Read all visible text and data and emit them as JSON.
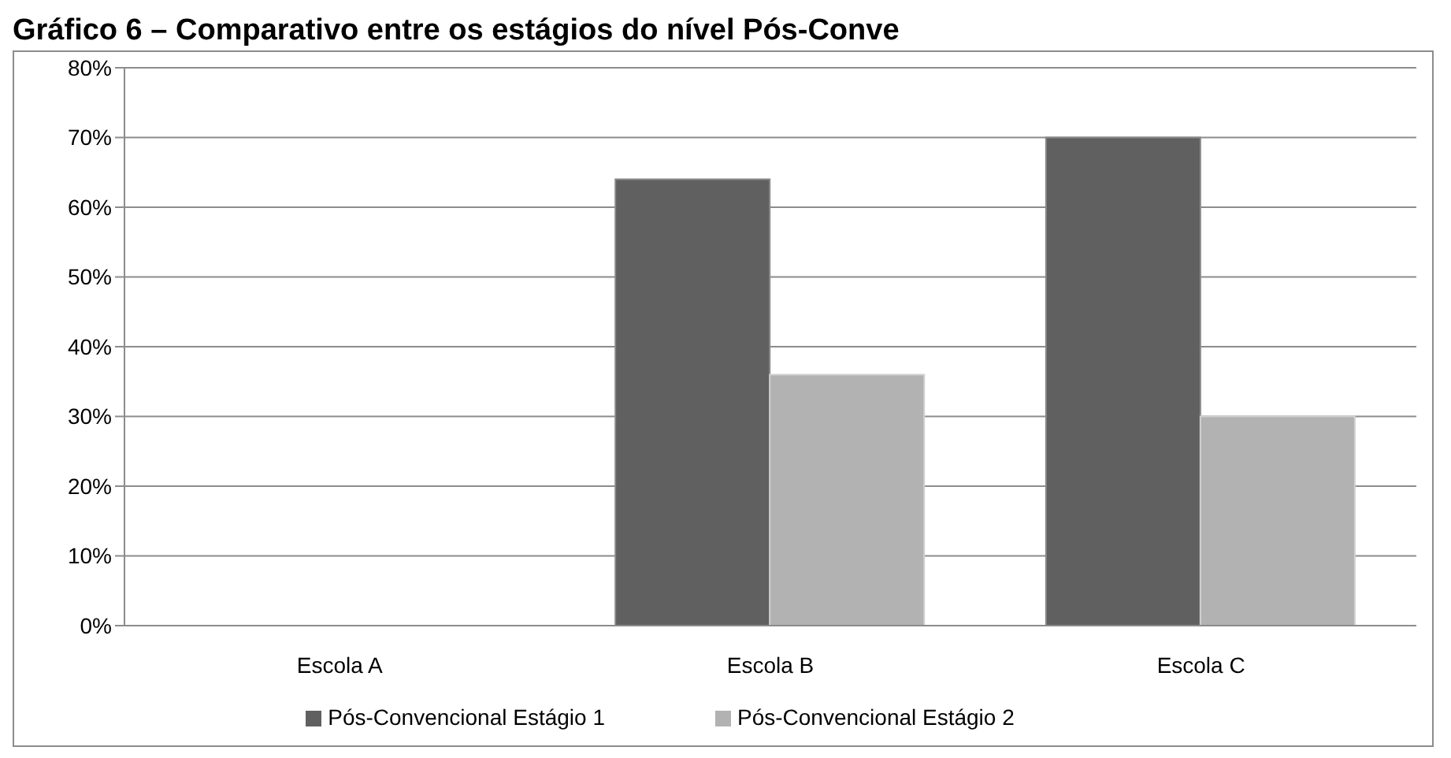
{
  "chart_data": {
    "type": "bar",
    "title": "Gráfico 6 – Comparativo entre os estágios do nível Pós-Conve",
    "categories": [
      "Escola A",
      "Escola B",
      "Escola C"
    ],
    "series": [
      {
        "name": "Pós-Convencional Estágio 1",
        "color": "#606060",
        "values": [
          0,
          64,
          70
        ]
      },
      {
        "name": "Pós-Convencional Estágio 2",
        "color": "#b2b2b2",
        "values": [
          0,
          36,
          30
        ]
      }
    ],
    "ylim": [
      0,
      80
    ],
    "yticks": [
      {
        "value": 0,
        "label": "0%"
      },
      {
        "value": 10,
        "label": "10%"
      },
      {
        "value": 20,
        "label": "20%"
      },
      {
        "value": 30,
        "label": "30%"
      },
      {
        "value": 40,
        "label": "40%"
      },
      {
        "value": 50,
        "label": "50%"
      },
      {
        "value": 60,
        "label": "60%"
      },
      {
        "value": 70,
        "label": "70%"
      },
      {
        "value": 80,
        "label": "80%"
      }
    ],
    "grid": "y",
    "legend": "bottom"
  }
}
